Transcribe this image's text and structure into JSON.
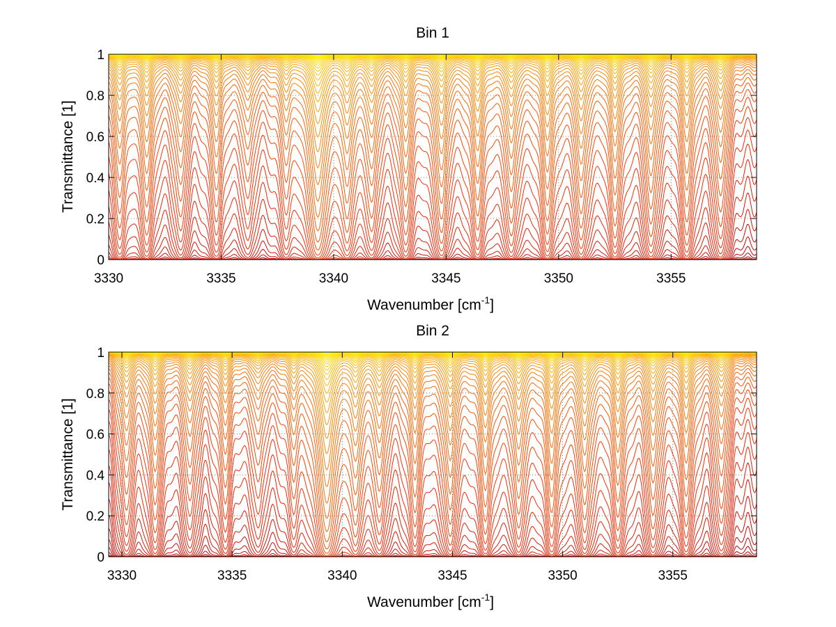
{
  "chart_data": [
    {
      "type": "line",
      "title": "Bin 1",
      "xlabel_text": "Wavenumber [cm",
      "xlabel_sup": "-1",
      "xlabel_close": "]",
      "ylabel": "Transmittance [1]",
      "xlim": [
        3330,
        3358.8
      ],
      "ylim": [
        0,
        1
      ],
      "xticks": [
        "3330",
        "3335",
        "3340",
        "3345",
        "3350",
        "3355"
      ],
      "yticks": [
        "0",
        "0.2",
        "0.4",
        "0.6",
        "0.8",
        "1"
      ],
      "grid": "dotted",
      "colormap": [
        "#800000",
        "#cc0000",
        "#ff2a00",
        "#ff7a00",
        "#ffd000",
        "#ffff00"
      ],
      "series_count": 48,
      "series_description": "Family of transmittance curves with increasing absorber amount; deepest curves dark red near 0, shallowest yellow near 1",
      "line_centers": [
        3330.5,
        3331.7,
        3333.2,
        3334.8,
        3336.2,
        3337.9,
        3339.3,
        3340.6,
        3341.7,
        3343.2,
        3344.8,
        3346.4,
        3347.9,
        3349.5,
        3351.0,
        3352.5,
        3354.1,
        3355.7,
        3357.2
      ],
      "line_strengths": [
        0.9,
        1.0,
        0.75,
        0.8,
        0.55,
        0.65,
        2.6,
        1.2,
        0.9,
        1.0,
        1.3,
        1.2,
        1.1,
        1.3,
        1.2,
        1.1,
        1.1,
        1.0,
        0.9
      ],
      "continuum": 0.05
    },
    {
      "type": "line",
      "title": "Bin 2",
      "xlabel_text": "Wavenumber [cm",
      "xlabel_sup": "-1",
      "xlabel_close": "]",
      "ylabel": "Transmittance [1]",
      "xlim": [
        3329.4,
        3358.8
      ],
      "ylim": [
        0,
        1
      ],
      "xticks": [
        "3330",
        "3335",
        "3340",
        "3345",
        "3350",
        "3355"
      ],
      "yticks": [
        "0",
        "0.2",
        "0.4",
        "0.6",
        "0.8",
        "1"
      ],
      "grid": "dotted",
      "colormap": [
        "#800000",
        "#cc0000",
        "#ff2a00",
        "#ff7a00",
        "#ffd000",
        "#ffff00"
      ],
      "series_count": 48,
      "series_description": "Family of transmittance curves with increasing absorber amount; deepest curves dark red near 0, shallowest yellow near 1",
      "line_centers": [
        3330.2,
        3331.5,
        3333.1,
        3334.7,
        3336.2,
        3337.8,
        3339.3,
        3340.6,
        3341.7,
        3343.3,
        3344.9,
        3346.5,
        3348.0,
        3349.5,
        3351.0,
        3352.5,
        3354.1,
        3355.6,
        3357.2
      ],
      "line_strengths": [
        0.7,
        0.8,
        0.6,
        0.6,
        0.45,
        0.5,
        2.8,
        1.1,
        0.8,
        0.9,
        1.2,
        1.1,
        1.0,
        1.2,
        1.1,
        1.0,
        1.0,
        0.9,
        0.7
      ],
      "continuum": 0.04
    }
  ]
}
